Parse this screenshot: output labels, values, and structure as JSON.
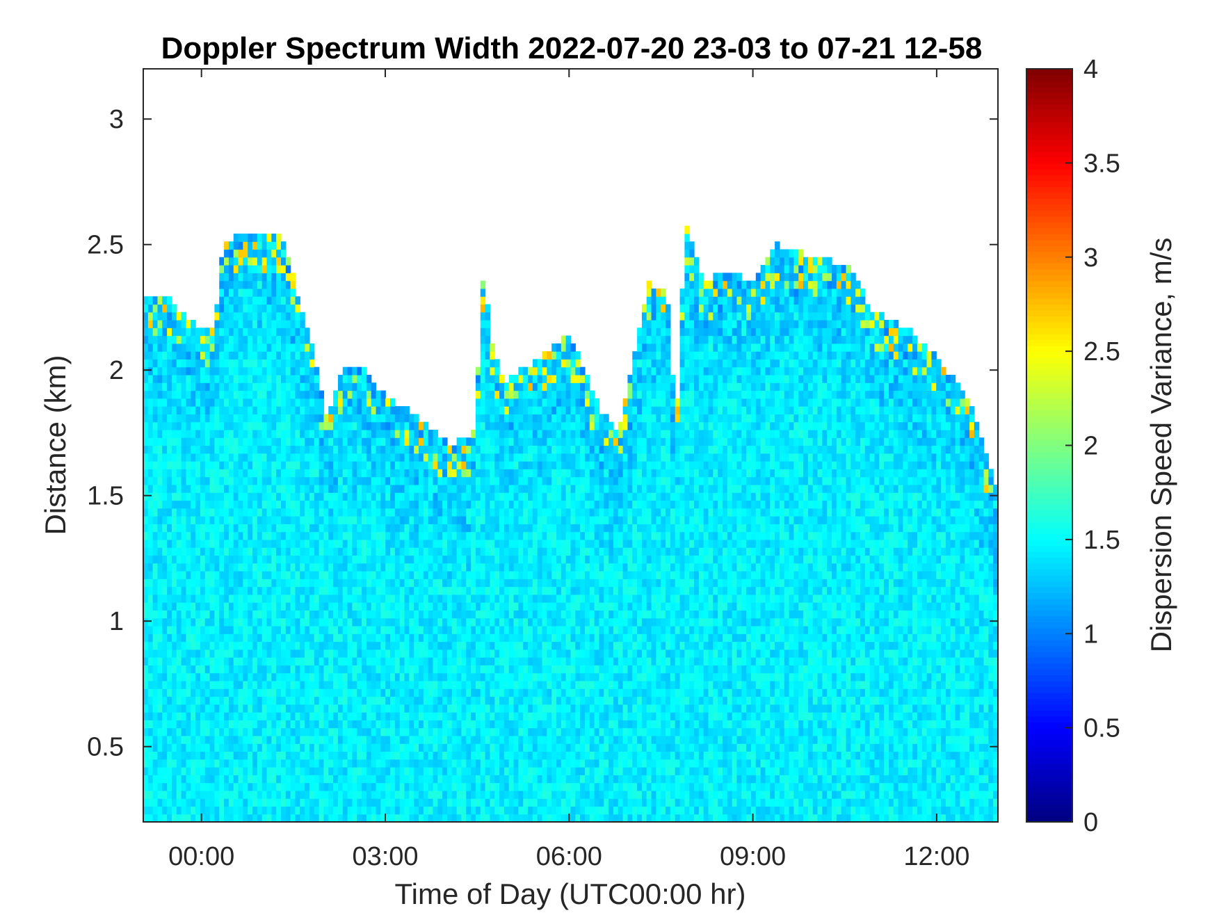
{
  "chart_data": {
    "type": "heatmap",
    "title": "Doppler Spectrum Width 2022-07-20 23-03 to 07-21 12-58",
    "xlabel": "Time of Day (UTC00:00 hr)",
    "ylabel": "Distance (km)",
    "xlim": [
      -0.95,
      13.0
    ],
    "ylim": [
      0.2,
      3.2
    ],
    "xticks": [
      0,
      3,
      6,
      9,
      12
    ],
    "xticklabels": [
      "00:00",
      "03:00",
      "06:00",
      "09:00",
      "12:00"
    ],
    "yticks": [
      0.5,
      1,
      1.5,
      2,
      2.5,
      3
    ],
    "yticklabels": [
      "0.5",
      "1",
      "1.5",
      "2",
      "2.5",
      "3"
    ],
    "colorbar": {
      "label": "Dispersion Speed Variance, m/s",
      "colormap": "jet",
      "clim": [
        0,
        4
      ],
      "ticks": [
        0,
        0.5,
        1,
        1.5,
        2,
        2.5,
        3,
        3.5,
        4
      ],
      "ticklabels": [
        "0",
        "0.5",
        "1",
        "1.5",
        "2",
        "2.5",
        "3",
        "3.5",
        "4"
      ]
    },
    "signal_top_km": {
      "x": [
        -0.95,
        -0.6,
        -0.2,
        0.2,
        0.35,
        0.7,
        1.3,
        1.85,
        2.05,
        2.3,
        2.65,
        3.0,
        3.5,
        4.05,
        4.45,
        4.6,
        4.75,
        4.95,
        5.5,
        6.0,
        6.5,
        6.8,
        7.3,
        7.6,
        7.75,
        7.9,
        8.2,
        8.6,
        9.0,
        9.4,
        10.0,
        10.6,
        10.9,
        11.3,
        11.6,
        12.0,
        12.5,
        13.0
      ],
      "y": [
        2.3,
        2.3,
        2.2,
        2.15,
        2.5,
        2.55,
        2.55,
        2.05,
        1.82,
        2.0,
        2.0,
        1.9,
        1.82,
        1.7,
        1.75,
        2.4,
        2.1,
        1.95,
        2.05,
        2.15,
        1.85,
        1.75,
        2.35,
        2.3,
        1.8,
        2.6,
        2.35,
        2.4,
        2.35,
        2.5,
        2.45,
        2.42,
        2.25,
        2.2,
        2.15,
        2.05,
        1.9,
        1.5
      ]
    },
    "typical_value_m_s": 1.45
  }
}
